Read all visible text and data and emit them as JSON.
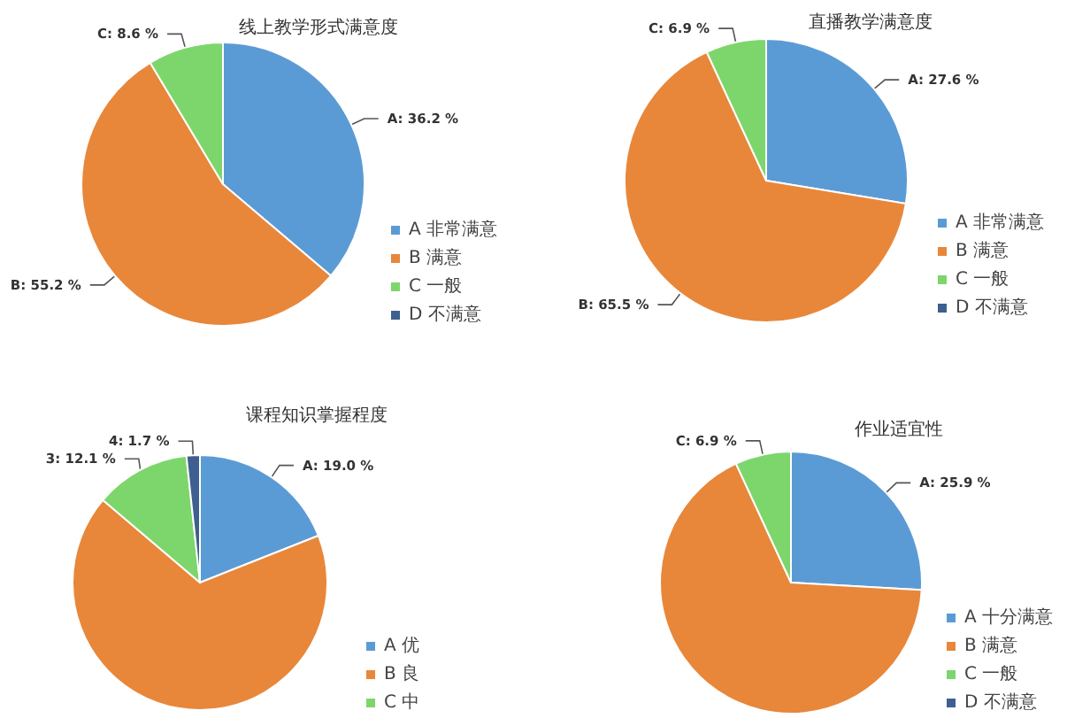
{
  "chart_data": [
    {
      "type": "pie",
      "title": "线上教学形式满意度",
      "categories": [
        "A 非常满意",
        "B 满意",
        "C 一般",
        "D 不满意"
      ],
      "values": [
        36.2,
        55.2,
        8.6,
        0
      ],
      "colors": [
        "#5b9bd5",
        "#e8873a",
        "#7dd66c",
        "#3e5f8f"
      ],
      "value_labels": [
        "A: 36.2 %",
        "B: 55.2 %",
        "C: 8.6 %",
        null
      ],
      "legend": "bottom right"
    },
    {
      "type": "pie",
      "title": "直播教学满意度",
      "categories": [
        "A 非常满意",
        "B 满意",
        "C 一般",
        "D 不满意"
      ],
      "values": [
        27.6,
        65.5,
        6.9,
        0
      ],
      "colors": [
        "#5b9bd5",
        "#e8873a",
        "#7dd66c",
        "#3e5f8f"
      ],
      "value_labels": [
        "A: 27.6 %",
        "B: 65.5 %",
        "C: 6.9 %",
        null
      ],
      "legend": "bottom right"
    },
    {
      "type": "pie",
      "title": "课程知识掌握程度",
      "categories": [
        "A 优",
        "B 良",
        "C 中",
        null
      ],
      "values": [
        19.0,
        67.2,
        12.1,
        1.7
      ],
      "colors": [
        "#5b9bd5",
        "#e8873a",
        "#7dd66c",
        "#3e5f8f"
      ],
      "value_labels": [
        "A: 19.0 %",
        null,
        "3: 12.1 %",
        "4: 1.7 %"
      ],
      "legend": "bottom right"
    },
    {
      "type": "pie",
      "title": "作业适宜性",
      "categories": [
        "A 十分满意",
        "B 满意",
        "C 一般",
        "D 不满意"
      ],
      "values": [
        25.9,
        67.2,
        6.9,
        0
      ],
      "colors": [
        "#5b9bd5",
        "#e8873a",
        "#7dd66c",
        "#3e5f8f"
      ],
      "value_labels": [
        "A: 25.9 %",
        null,
        "C: 6.9 %",
        null
      ],
      "legend": "bottom right"
    }
  ]
}
